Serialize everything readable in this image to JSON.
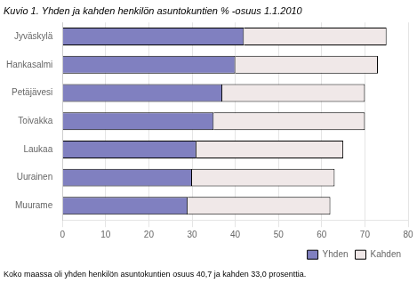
{
  "chart_data": {
    "type": "bar",
    "orientation": "horizontal",
    "stacked": true,
    "title": "Kuvio 1. Yhden ja kahden henkilön asuntokuntien % -osuus 1.1.2010",
    "annotations": [
      "Koko maassa oli yhden henkilön asuntokuntien osuus 40,7 ja kahden 33,0 prosenttia."
    ],
    "categories": [
      "Jyväskylä",
      "Hankasalmi",
      "Petäjävesi",
      "Toivakka",
      "Laukaa",
      "Uurainen",
      "Muurame"
    ],
    "series": [
      {
        "name": "Yhden",
        "color": "#8080c0",
        "values": [
          42.0,
          40.0,
          37.0,
          35.0,
          31.0,
          30.0,
          29.0
        ]
      },
      {
        "name": "Kahden",
        "color": "#f0e8e8",
        "values": [
          33.0,
          33.0,
          33.0,
          35.0,
          34.0,
          33.0,
          33.0
        ]
      }
    ],
    "xlim": [
      0,
      80
    ],
    "xticks": [
      0,
      10,
      20,
      30,
      40,
      50,
      60,
      70,
      80
    ],
    "grid": true,
    "legend": "lower right"
  }
}
